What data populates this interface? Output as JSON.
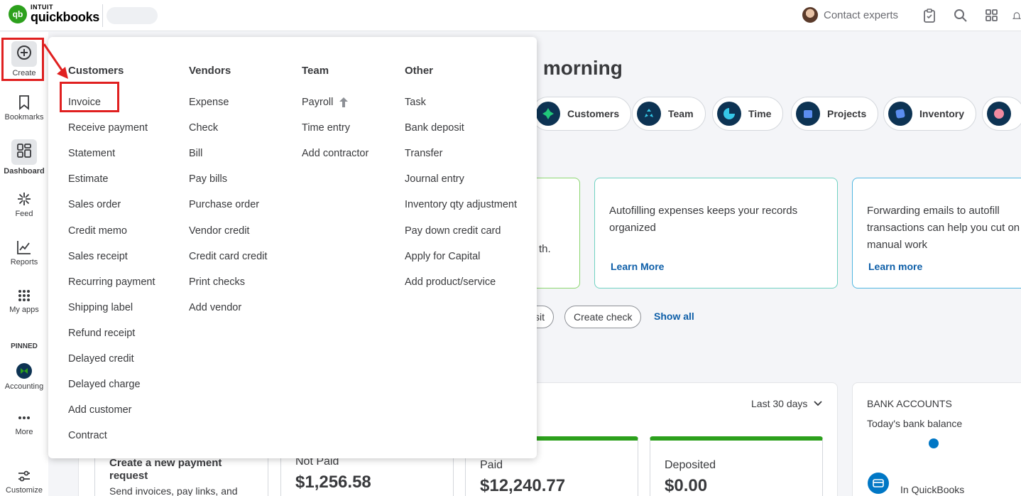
{
  "topbar": {
    "brand_top": "INTUIT",
    "brand_main": "quickbooks",
    "contact_label": "Contact experts",
    "icons": [
      "clipboard-icon",
      "search-icon",
      "apps-icon",
      "bell-icon"
    ]
  },
  "rail": {
    "create": "Create",
    "bookmarks": "Bookmarks",
    "dashboard": "Dashboard",
    "feed": "Feed",
    "reports": "Reports",
    "my_apps": "My apps",
    "pinned": "PINNED",
    "accounting": "Accounting",
    "more": "More",
    "customize": "Customize"
  },
  "dashboard": {
    "greeting": "d morning",
    "chips": [
      "Customers",
      "Team",
      "Time",
      "Projects",
      "Inventory"
    ],
    "card_partial_text": "th.",
    "card1_text": "Autofilling expenses keeps your records organized",
    "card1_link": "Learn More",
    "card2_text": "Forwarding emails to autofill transactions can help you cut on manual work",
    "card2_link": "Learn more",
    "btn_partial": "sit",
    "btn_create_check": "Create check",
    "show_all": "Show all",
    "period": "Last 30 days",
    "payment_title": "Create a new payment request",
    "payment_sub": "Send invoices, pay links, and",
    "stats": [
      {
        "label": "Not Paid",
        "value": "$1,256.58"
      },
      {
        "label": "Paid",
        "value": "$12,240.77"
      },
      {
        "label": "Deposited",
        "value": "$0.00"
      }
    ],
    "bank_title": "BANK ACCOUNTS",
    "bank_sub": "Today's bank balance",
    "bank_in": "In QuickBooks"
  },
  "create_menu": {
    "customers": {
      "heading": "Customers",
      "items": [
        "Invoice",
        "Receive payment",
        "Statement",
        "Estimate",
        "Sales order",
        "Credit memo",
        "Sales receipt",
        "Recurring payment",
        "Shipping label",
        "Refund receipt",
        "Delayed credit",
        "Delayed charge",
        "Add customer",
        "Contract"
      ]
    },
    "vendors": {
      "heading": "Vendors",
      "items": [
        "Expense",
        "Check",
        "Bill",
        "Pay bills",
        "Purchase order",
        "Vendor credit",
        "Credit card credit",
        "Print checks",
        "Add vendor"
      ]
    },
    "team": {
      "heading": "Team",
      "items": [
        "Payroll",
        "Time entry",
        "Add contractor"
      ]
    },
    "other": {
      "heading": "Other",
      "items": [
        "Task",
        "Bank deposit",
        "Transfer",
        "Journal entry",
        "Inventory qty adjustment",
        "Pay down credit card",
        "Apply for Capital",
        "Add product/service"
      ]
    }
  },
  "colors": {
    "brand_green": "#2ca01c",
    "annotation_red": "#e02020",
    "link_blue": "#0d5ea8",
    "navy": "#0d3353"
  }
}
